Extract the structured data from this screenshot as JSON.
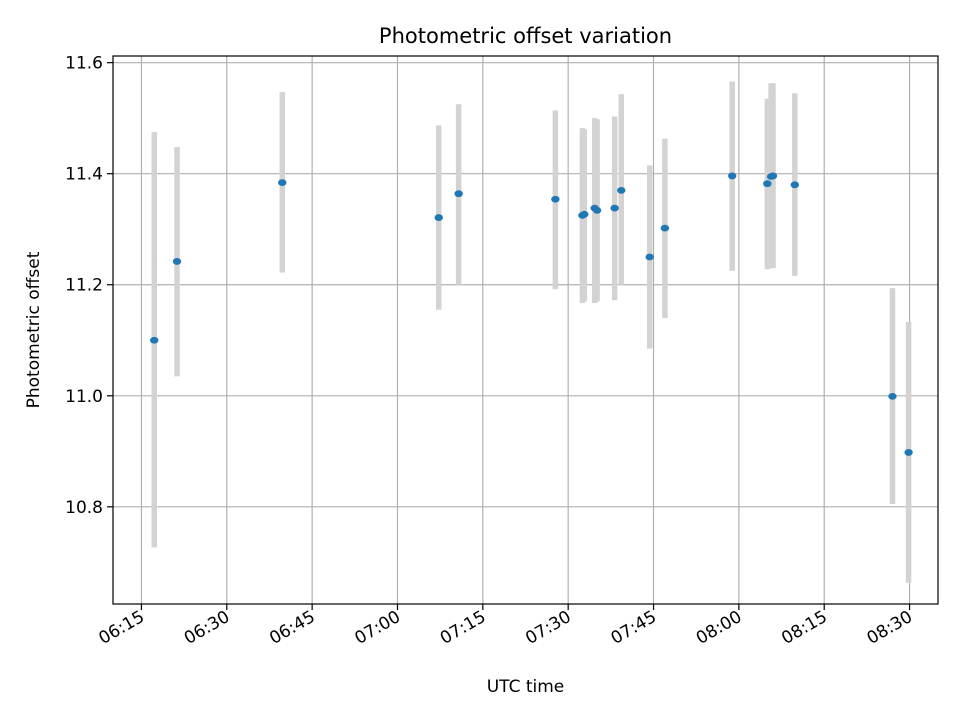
{
  "chart_data": {
    "type": "scatter",
    "title": "Photometric offset variation",
    "xlabel": "UTC time",
    "ylabel": "Photometric offset",
    "x_range": [
      "06:10",
      "08:35"
    ],
    "ylim": [
      10.625,
      11.612
    ],
    "x_ticks": [
      "06:15",
      "06:30",
      "06:45",
      "07:00",
      "07:15",
      "07:30",
      "07:45",
      "08:00",
      "08:15",
      "08:30"
    ],
    "y_ticks": [
      10.8,
      11.0,
      11.2,
      11.4,
      11.6
    ],
    "y_tick_labels": [
      "10.8",
      "11.0",
      "11.2",
      "11.4",
      "11.6"
    ],
    "grid": true,
    "marker_color": "#1f77b4",
    "errorbar_color": "#d3d3d3",
    "points": [
      {
        "time": "06:17:15",
        "y": 11.1,
        "lo": 10.727,
        "hi": 11.475
      },
      {
        "time": "06:21:15",
        "y": 11.242,
        "lo": 11.035,
        "hi": 11.448
      },
      {
        "time": "06:39:45",
        "y": 11.384,
        "lo": 11.222,
        "hi": 11.547
      },
      {
        "time": "07:07:15",
        "y": 11.321,
        "lo": 11.155,
        "hi": 11.487
      },
      {
        "time": "07:10:45",
        "y": 11.364,
        "lo": 11.2,
        "hi": 11.525
      },
      {
        "time": "07:27:45",
        "y": 11.354,
        "lo": 11.192,
        "hi": 11.514
      },
      {
        "time": "07:32:30",
        "y": 11.325,
        "lo": 11.167,
        "hi": 11.482
      },
      {
        "time": "07:32:50",
        "y": 11.327,
        "lo": 11.17,
        "hi": 11.48
      },
      {
        "time": "07:34:40",
        "y": 11.338,
        "lo": 11.167,
        "hi": 11.5
      },
      {
        "time": "07:35:05",
        "y": 11.334,
        "lo": 11.17,
        "hi": 11.498
      },
      {
        "time": "07:38:10",
        "y": 11.338,
        "lo": 11.172,
        "hi": 11.503
      },
      {
        "time": "07:39:20",
        "y": 11.37,
        "lo": 11.2,
        "hi": 11.543
      },
      {
        "time": "07:44:20",
        "y": 11.25,
        "lo": 11.085,
        "hi": 11.415
      },
      {
        "time": "07:47:00",
        "y": 11.302,
        "lo": 11.14,
        "hi": 11.463
      },
      {
        "time": "07:58:50",
        "y": 11.396,
        "lo": 11.225,
        "hi": 11.566
      },
      {
        "time": "08:05:00",
        "y": 11.382,
        "lo": 11.228,
        "hi": 11.535
      },
      {
        "time": "08:05:40",
        "y": 11.395,
        "lo": 11.23,
        "hi": 11.563
      },
      {
        "time": "08:06:00",
        "y": 11.396,
        "lo": 11.23,
        "hi": 11.563
      },
      {
        "time": "08:09:50",
        "y": 11.38,
        "lo": 11.216,
        "hi": 11.545
      },
      {
        "time": "08:27:00",
        "y": 10.999,
        "lo": 10.805,
        "hi": 11.194
      },
      {
        "time": "08:29:50",
        "y": 10.898,
        "lo": 10.663,
        "hi": 11.133
      }
    ]
  }
}
